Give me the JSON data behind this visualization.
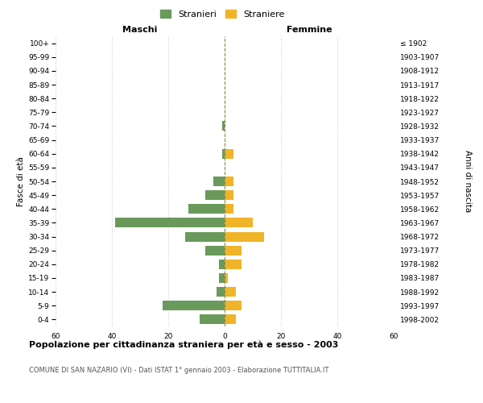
{
  "age_groups": [
    "0-4",
    "5-9",
    "10-14",
    "15-19",
    "20-24",
    "25-29",
    "30-34",
    "35-39",
    "40-44",
    "45-49",
    "50-54",
    "55-59",
    "60-64",
    "65-69",
    "70-74",
    "75-79",
    "80-84",
    "85-89",
    "90-94",
    "95-99",
    "100+"
  ],
  "birth_years": [
    "1998-2002",
    "1993-1997",
    "1988-1992",
    "1983-1987",
    "1978-1982",
    "1973-1977",
    "1968-1972",
    "1963-1967",
    "1958-1962",
    "1953-1957",
    "1948-1952",
    "1943-1947",
    "1938-1942",
    "1933-1937",
    "1928-1932",
    "1923-1927",
    "1918-1922",
    "1913-1917",
    "1908-1912",
    "1903-1907",
    "≤ 1902"
  ],
  "maschi": [
    9,
    22,
    3,
    2,
    2,
    7,
    14,
    39,
    13,
    7,
    4,
    0,
    1,
    0,
    1,
    0,
    0,
    0,
    0,
    0,
    0
  ],
  "femmine": [
    4,
    6,
    4,
    1,
    6,
    6,
    14,
    10,
    3,
    3,
    3,
    0,
    3,
    0,
    0,
    0,
    0,
    0,
    0,
    0,
    0
  ],
  "maschi_color": "#6a9a5b",
  "femmine_color": "#f0b429",
  "center_line_color": "#8b8b40",
  "background_color": "#ffffff",
  "grid_color": "#cccccc",
  "xlim": 60,
  "title": "Popolazione per cittadinanza straniera per età e sesso - 2003",
  "subtitle": "COMUNE DI SAN NAZARIO (VI) - Dati ISTAT 1° gennaio 2003 - Elaborazione TUTTITALIA.IT",
  "legend_maschi": "Stranieri",
  "legend_femmine": "Straniere",
  "left_header": "Maschi",
  "right_header": "Femmine",
  "ylabel_left": "Fasce di età",
  "ylabel_right": "Anni di nascita"
}
